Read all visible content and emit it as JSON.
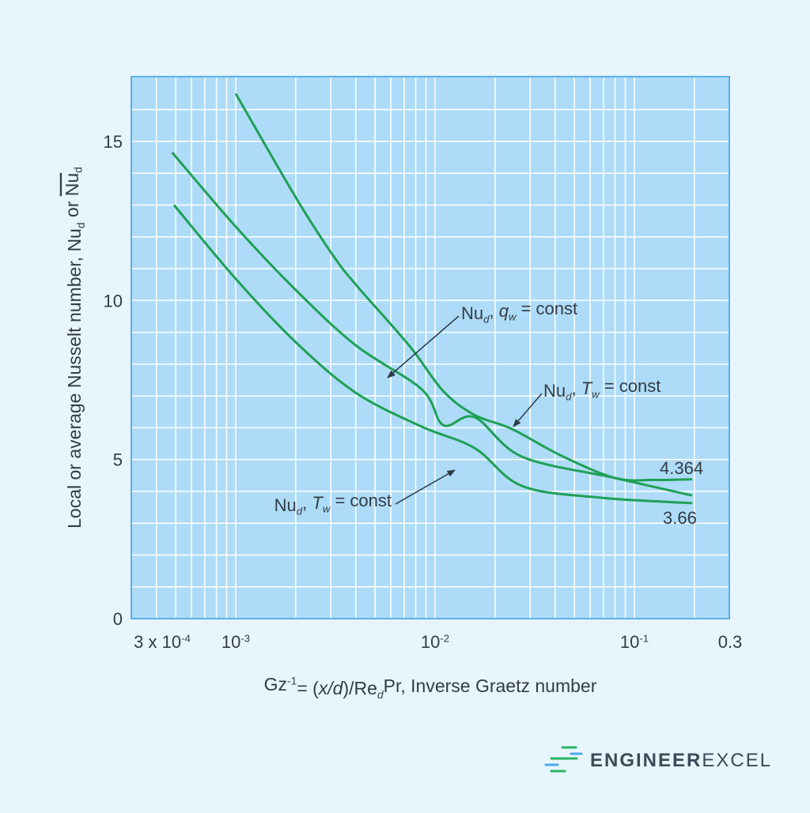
{
  "colors": {
    "background": "#e8f5fd",
    "plot_bg": "#aedcf8",
    "plot_border": "#5ab0e8",
    "grid": "#ffffff",
    "curve": "#1fa055",
    "text": "#333c45",
    "logo_green": "#2ab463",
    "logo_blue": "#4aabef"
  },
  "chart_data": {
    "type": "line",
    "xscale": "log",
    "xlim": [
      0.0003,
      0.3
    ],
    "ylim": [
      0,
      17
    ],
    "grid": true,
    "xlabel_parts": [
      {
        "t": "Gz"
      },
      {
        "t": "-1",
        "s": "sup"
      },
      {
        "t": "= ("
      },
      {
        "t": "x/d",
        "s": "i"
      },
      {
        "t": ")/Re"
      },
      {
        "t": "d",
        "s": "isub"
      },
      {
        "t": "Pr, Inverse Graetz number"
      }
    ],
    "ylabel_parts": [
      {
        "t": "Local or average Nusselt number, Nu"
      },
      {
        "t": "d",
        "s": "sub"
      },
      {
        "t": " or "
      },
      {
        "t": "Nu",
        "s": "over"
      },
      {
        "t": "d",
        "s": "sub"
      }
    ],
    "xticks": [
      {
        "value": 0.0003,
        "parts": [
          {
            "t": "3 x 10"
          },
          {
            "t": "-4",
            "s": "sup"
          }
        ]
      },
      {
        "value": 0.001,
        "parts": [
          {
            "t": "10"
          },
          {
            "t": "-3",
            "s": "sup"
          }
        ]
      },
      {
        "value": 0.01,
        "parts": [
          {
            "t": "10"
          },
          {
            "t": "-2",
            "s": "sup"
          }
        ]
      },
      {
        "value": 0.1,
        "parts": [
          {
            "t": "10"
          },
          {
            "t": "-1",
            "s": "sup"
          }
        ]
      },
      {
        "value": 0.3,
        "parts": [
          {
            "t": "0.3"
          }
        ]
      }
    ],
    "yticks": [
      {
        "value": 0,
        "label": "0"
      },
      {
        "value": 5,
        "label": "5"
      },
      {
        "value": 10,
        "label": "10"
      },
      {
        "value": 15,
        "label": "15"
      }
    ],
    "series": [
      {
        "x": [
          0.001,
          0.002,
          0.00305,
          0.004,
          0.0074,
          0.011,
          0.0158,
          0.0243,
          0.043,
          0.08,
          0.126,
          0.195
        ],
        "y": [
          16.5,
          13.24,
          11.45,
          10.5,
          8.59,
          7.15,
          6.4,
          5.96,
          5.12,
          4.42,
          4.36,
          4.38
        ]
      },
      {
        "x": [
          0.00048,
          0.001,
          0.002,
          0.004,
          0.0086,
          0.011,
          0.0158,
          0.0273,
          0.08,
          0.195
        ],
        "y": [
          14.65,
          12.32,
          10.33,
          8.59,
          7.2,
          6.08,
          6.33,
          5.09,
          4.42,
          3.87
        ]
      },
      {
        "x": [
          0.00049,
          0.001,
          0.002,
          0.004,
          0.0086,
          0.0158,
          0.0273,
          0.068,
          0.195
        ],
        "y": [
          13.0,
          10.68,
          8.69,
          7.1,
          6.03,
          5.36,
          4.17,
          3.8,
          3.63
        ]
      }
    ],
    "annotations": [
      {
        "parts": [
          {
            "t": "Nu"
          },
          {
            "t": "d",
            "s": "isub"
          },
          {
            "t": ", "
          },
          {
            "t": "q",
            "s": "i"
          },
          {
            "t": "w",
            "s": "isub"
          },
          {
            "t": " = const"
          }
        ],
        "points_to_series": 1
      },
      {
        "parts": [
          {
            "t": "Nu"
          },
          {
            "t": "d",
            "s": "isub"
          },
          {
            "t": ", "
          },
          {
            "t": "T",
            "s": "i"
          },
          {
            "t": "w",
            "s": "isub"
          },
          {
            "t": " = const"
          }
        ],
        "points_to_series": 0
      },
      {
        "parts": [
          {
            "t": "Nu"
          },
          {
            "t": "d",
            "s": "isub"
          },
          {
            "t": ", "
          },
          {
            "t": "T",
            "s": "i"
          },
          {
            "t": "w",
            "s": "isub"
          },
          {
            "t": " = const"
          }
        ],
        "points_to_series": 2
      }
    ],
    "value_labels": [
      "4.364",
      "3.66"
    ]
  },
  "logo": {
    "text_bold": "ENGINEER",
    "text_light": "EXCEL"
  }
}
